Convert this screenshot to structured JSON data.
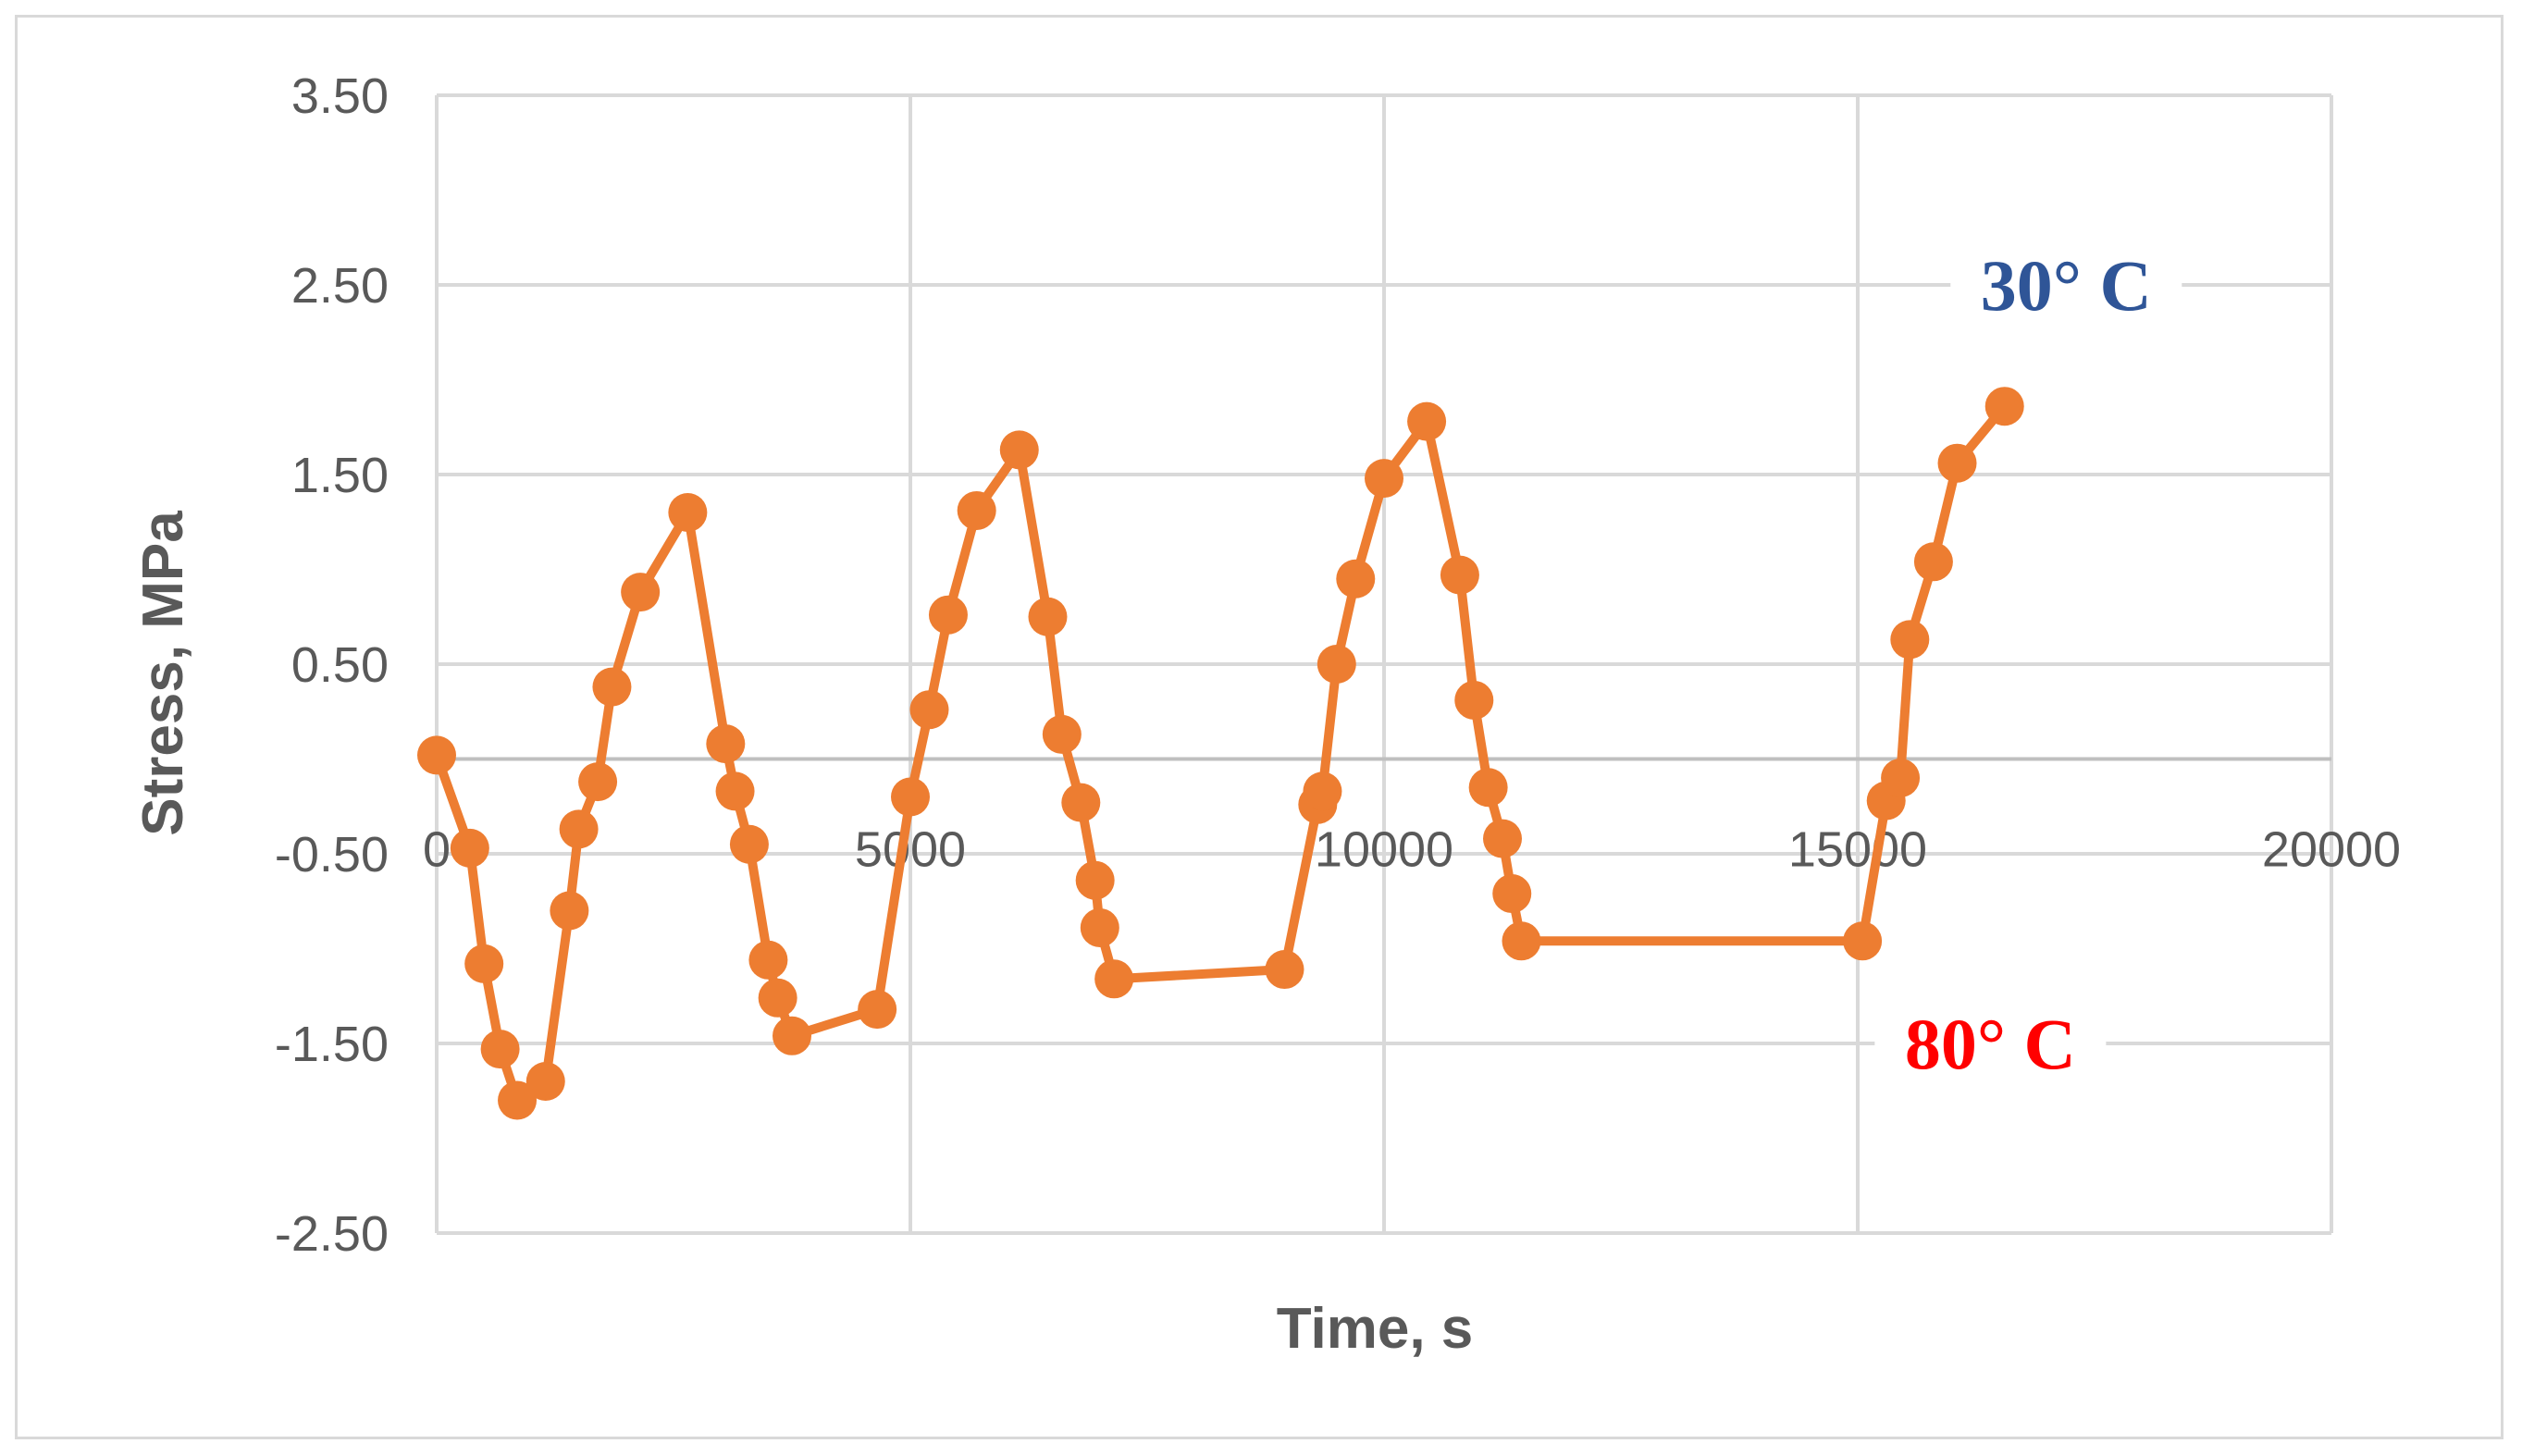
{
  "colors": {
    "series": "#ED7D31",
    "grid": "#D9D9D9",
    "text": "#595959",
    "annotation_30": "#2F5597",
    "annotation_80": "#FF0000"
  },
  "chart_data": {
    "type": "scatter",
    "mode": "line-with-markers",
    "title": "",
    "xlabel": "Time, s",
    "ylabel": "Stress, MPa",
    "xlim": [
      0,
      20000
    ],
    "ylim": [
      -2.5,
      3.5
    ],
    "xticks": [
      0,
      5000,
      10000,
      15000,
      20000
    ],
    "xtick_labels": [
      "0",
      "5000",
      "10000",
      "15000",
      "20000"
    ],
    "yticks": [
      3.5,
      2.5,
      1.5,
      0.5,
      -0.5,
      -1.5,
      -2.5
    ],
    "ytick_labels": [
      "3.50",
      "2.50",
      "1.50",
      "0.50",
      "-0.50",
      "-1.50",
      "-2.50"
    ],
    "grid": true,
    "legend": "none",
    "annotations": [
      {
        "text": "30° C",
        "x": 17200,
        "y": 2.5,
        "color": "#2F5597"
      },
      {
        "text": "80° C",
        "x": 16400,
        "y": -1.5,
        "color": "#FF0000"
      }
    ],
    "series": [
      {
        "color": "#ED7D31",
        "points": [
          [
            0,
            0.02
          ],
          [
            350,
            -0.47
          ],
          [
            500,
            -1.08
          ],
          [
            670,
            -1.53
          ],
          [
            850,
            -1.8
          ],
          [
            1150,
            -1.7
          ],
          [
            1400,
            -0.8
          ],
          [
            1500,
            -0.37
          ],
          [
            1700,
            -0.12
          ],
          [
            1850,
            0.38
          ],
          [
            2150,
            0.88
          ],
          [
            2650,
            1.3
          ],
          [
            3050,
            0.08
          ],
          [
            3150,
            -0.17
          ],
          [
            3300,
            -0.45
          ],
          [
            3500,
            -1.06
          ],
          [
            3600,
            -1.26
          ],
          [
            3750,
            -1.46
          ],
          [
            4650,
            -1.32
          ],
          [
            5000,
            -0.2
          ],
          [
            5200,
            0.26
          ],
          [
            5400,
            0.76
          ],
          [
            5700,
            1.31
          ],
          [
            6150,
            1.63
          ],
          [
            6450,
            0.75
          ],
          [
            6600,
            0.13
          ],
          [
            6800,
            -0.23
          ],
          [
            6950,
            -0.64
          ],
          [
            7000,
            -0.89
          ],
          [
            7150,
            -1.16
          ],
          [
            8950,
            -1.11
          ],
          [
            9300,
            -0.24
          ],
          [
            9350,
            -0.17
          ],
          [
            9500,
            0.5
          ],
          [
            9700,
            0.95
          ],
          [
            10000,
            1.48
          ],
          [
            10450,
            1.78
          ],
          [
            10800,
            0.97
          ],
          [
            10950,
            0.31
          ],
          [
            11100,
            -0.15
          ],
          [
            11250,
            -0.42
          ],
          [
            11350,
            -0.71
          ],
          [
            11450,
            -0.96
          ],
          [
            15050,
            -0.96
          ],
          [
            15300,
            -0.22
          ],
          [
            15450,
            -0.1
          ],
          [
            15550,
            0.63
          ],
          [
            15800,
            1.04
          ],
          [
            16050,
            1.56
          ],
          [
            16550,
            1.86
          ]
        ]
      }
    ]
  }
}
